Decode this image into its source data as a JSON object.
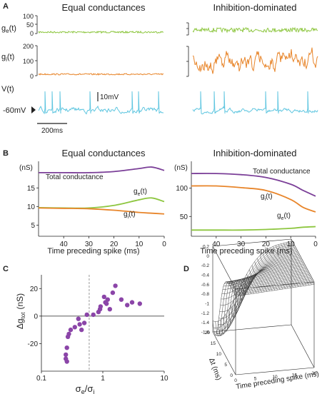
{
  "panels": {
    "A": {
      "letter": "A",
      "titles": [
        "Equal conductances",
        "Inhibition-dominated"
      ],
      "row_labels": {
        "ge": "g",
        "ge_sub": "e",
        "ge_arg": "(t)",
        "gi": "g",
        "gi_sub": "i",
        "gi_arg": "(t)",
        "v": "V(t)"
      },
      "ge_ticks": [
        "100",
        "50",
        "0"
      ],
      "gi_ticks": [
        "200",
        "100",
        "0"
      ],
      "rest_label": "-60mV",
      "scalebar_v": "10mV",
      "scalebar_t": "200ms",
      "spikes_equal": [
        0.05,
        0.11,
        0.17,
        0.41,
        0.75,
        0.8,
        0.96
      ],
      "spikes_inh": [
        0.06,
        0.17,
        0.25,
        0.58,
        0.68,
        0.92
      ]
    },
    "B": {
      "letter": "B",
      "titles": [
        "Equal conductances",
        "Inhibition-dominated"
      ],
      "unit": "(nS)",
      "xlabel": "Time preceding spike (ms)",
      "labels_left": {
        "total": "Total conductance",
        "ge": "g",
        "ge_sub": "e",
        "ge_arg": "(t)",
        "gi": "g",
        "gi_sub": "i",
        "gi_arg": "(t)"
      },
      "labels_right": {
        "total": "Total conductance",
        "ge": "g",
        "ge_sub": "e",
        "ge_arg": "(t)",
        "gi": "g",
        "gi_sub": "i",
        "gi_arg": "(t)"
      },
      "left_yticks": [
        15,
        10,
        5
      ],
      "right_yticks": [
        100,
        50
      ],
      "xticks": [
        40,
        30,
        20,
        10,
        0
      ]
    },
    "C": {
      "letter": "C",
      "ylabel_main": "Δg",
      "ylabel_sub": "tot",
      "ylabel_unit": "(nS)",
      "xlabel_main": "σ",
      "xlabel_sub1": "e",
      "xlabel_slash": "/σ",
      "xlabel_sub2": "i",
      "xticks": [
        "0.1",
        "1",
        "10"
      ],
      "yticks": [
        "20",
        "0",
        "-20"
      ]
    },
    "D": {
      "letter": "D",
      "zticks": [
        "0.2",
        "0",
        "-0.2",
        "-0.4",
        "-0.6",
        "-0.8",
        "-1",
        "-1.2",
        "-1.4",
        "-1.6"
      ],
      "y_axis_label": "Δt (ms)",
      "y_ticks": [
        "20",
        "15",
        "10",
        "5",
        "0"
      ],
      "x_axis_label": "Time preceding spike (ms)",
      "x_ticks": [
        "0",
        "5",
        "10",
        "15",
        "20"
      ]
    }
  },
  "colors": {
    "purple": "#7b3f98",
    "orange": "#e8852a",
    "green": "#8dc63f",
    "cyan": "#5fc6e0",
    "scatter": "#8b45a8",
    "dash": "#999999"
  },
  "chart_data": [
    {
      "type": "line",
      "panel": "B-left",
      "title": "Equal conductances",
      "xlabel": "Time preceding spike (ms)",
      "ylabel": "(nS)",
      "xlim": [
        50,
        0
      ],
      "ylim": [
        2,
        21
      ],
      "x": [
        50,
        40,
        30,
        20,
        10,
        5,
        0
      ],
      "series": [
        {
          "name": "Total conductance",
          "values": [
            19.1,
            19.1,
            19.1,
            19.4,
            20.2,
            20.6,
            19.7
          ]
        },
        {
          "name": "g_e(t)",
          "values": [
            9.7,
            9.6,
            9.6,
            10.3,
            11.8,
            12.3,
            11.3
          ]
        },
        {
          "name": "g_i(t)",
          "values": [
            9.6,
            9.5,
            9.4,
            9.0,
            8.4,
            8.2,
            8.0
          ]
        }
      ]
    },
    {
      "type": "line",
      "panel": "B-right",
      "title": "Inhibition-dominated",
      "xlabel": "Time preceding spike (ms)",
      "ylabel": "(nS)",
      "xlim": [
        50,
        0
      ],
      "ylim": [
        15,
        140
      ],
      "x": [
        50,
        40,
        30,
        20,
        10,
        5,
        0
      ],
      "series": [
        {
          "name": "Total conductance",
          "values": [
            126,
            126,
            124,
            119,
            107,
            96,
            86
          ]
        },
        {
          "name": "g_i(t)",
          "values": [
            104,
            104,
            101,
            96,
            80,
            66,
            58
          ]
        },
        {
          "name": "g_e(t)",
          "values": [
            26,
            26,
            26,
            27,
            29,
            31,
            32
          ]
        }
      ]
    },
    {
      "type": "scatter",
      "panel": "C",
      "xlabel": "σe/σi",
      "ylabel": "Δg_tot (nS)",
      "xscale": "log",
      "xlim": [
        0.1,
        10
      ],
      "ylim": [
        -40,
        30
      ],
      "points": [
        [
          0.25,
          -28
        ],
        [
          0.25,
          -31
        ],
        [
          0.26,
          -23
        ],
        [
          0.26,
          -33
        ],
        [
          0.27,
          -15
        ],
        [
          0.28,
          -13
        ],
        [
          0.3,
          -10
        ],
        [
          0.35,
          -8
        ],
        [
          0.4,
          -2
        ],
        [
          0.42,
          -6
        ],
        [
          0.45,
          -10
        ],
        [
          0.5,
          -5
        ],
        [
          0.55,
          1
        ],
        [
          0.7,
          1
        ],
        [
          0.85,
          3
        ],
        [
          0.9,
          5
        ],
        [
          0.92,
          7
        ],
        [
          1.05,
          14
        ],
        [
          1.1,
          10
        ],
        [
          1.15,
          9
        ],
        [
          1.2,
          12
        ],
        [
          1.3,
          5
        ],
        [
          1.45,
          17
        ],
        [
          1.6,
          22
        ],
        [
          2.0,
          12
        ],
        [
          2.5,
          8
        ],
        [
          3.0,
          10
        ],
        [
          4.0,
          9
        ]
      ]
    }
  ]
}
